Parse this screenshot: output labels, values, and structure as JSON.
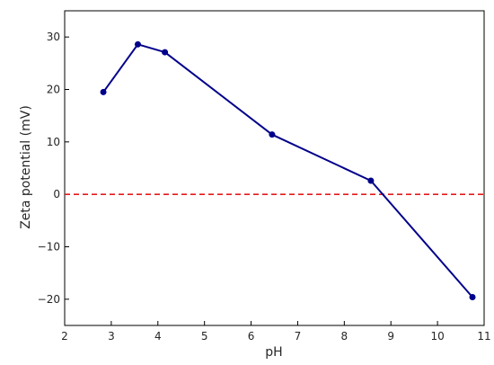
{
  "chart_data": {
    "type": "line",
    "title": "",
    "xlabel": "pH",
    "ylabel": "Zeta potential (mV)",
    "xlim": [
      2,
      11
    ],
    "ylim": [
      -25,
      35
    ],
    "xticks": [
      2,
      3,
      4,
      5,
      6,
      7,
      8,
      9,
      10,
      11
    ],
    "yticks": [
      -20,
      -10,
      0,
      10,
      20,
      30
    ],
    "xtick_labels": [
      "2",
      "3",
      "4",
      "5",
      "6",
      "7",
      "8",
      "9",
      "10",
      "11"
    ],
    "ytick_labels": [
      "−20",
      "−10",
      "0",
      "10",
      "20",
      "30"
    ],
    "grid": false,
    "legend": "none",
    "series": [
      {
        "color": "#00008b",
        "marker": "circle",
        "x": [
          2.83,
          3.57,
          4.15,
          6.45,
          8.57,
          10.75
        ],
        "y": [
          19.5,
          28.6,
          27.1,
          11.4,
          2.6,
          -19.6
        ]
      }
    ],
    "reference_lines": [
      {
        "orientation": "horizontal",
        "y": 0,
        "color": "#e31a1c",
        "style": "dashed"
      }
    ]
  }
}
